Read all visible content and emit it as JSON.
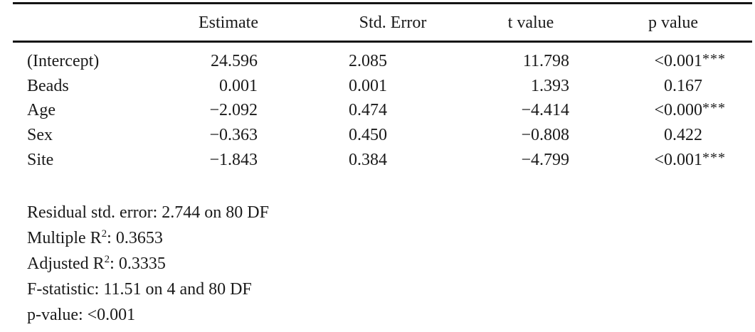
{
  "page": {
    "background_color": "#ffffff",
    "text_color": "#1a1a1a",
    "rule_color": "#141414"
  },
  "table": {
    "headers": {
      "estimate": "Estimate",
      "std_error": "Std. Error",
      "t_value": "t value",
      "p_value": "p value"
    },
    "rows": [
      {
        "label": "(Intercept)",
        "estimate": "24.596",
        "std_error": "2.085",
        "t_value": "11.798",
        "p_value": "<0.001",
        "p_stars": "***"
      },
      {
        "label": "Beads",
        "estimate": "0.001",
        "std_error": "0.001",
        "t_value": "1.393",
        "p_value": "0.167",
        "p_stars": ""
      },
      {
        "label": "Age",
        "estimate": "−2.092",
        "std_error": "0.474",
        "t_value": "−4.414",
        "p_value": "<0.000",
        "p_stars": "***"
      },
      {
        "label": "Sex",
        "estimate": "−0.363",
        "std_error": "0.450",
        "t_value": "−0.808",
        "p_value": "0.422",
        "p_stars": ""
      },
      {
        "label": "Site",
        "estimate": "−1.843",
        "std_error": "0.384",
        "t_value": "−4.799",
        "p_value": "<0.001",
        "p_stars": "***"
      }
    ]
  },
  "summary": {
    "lines": [
      {
        "pre": "Residual std. error: 2.744 on 80 DF",
        "sup": "",
        "post": ""
      },
      {
        "pre": "Multiple R",
        "sup": "2",
        "post": ": 0.3653"
      },
      {
        "pre": "Adjusted R",
        "sup": "2",
        "post": ": 0.3335"
      },
      {
        "pre": "F-statistic: 11.51 on 4 and 80 DF",
        "sup": "",
        "post": ""
      },
      {
        "pre": "p-value: <0.001",
        "sup": "",
        "post": ""
      }
    ]
  }
}
